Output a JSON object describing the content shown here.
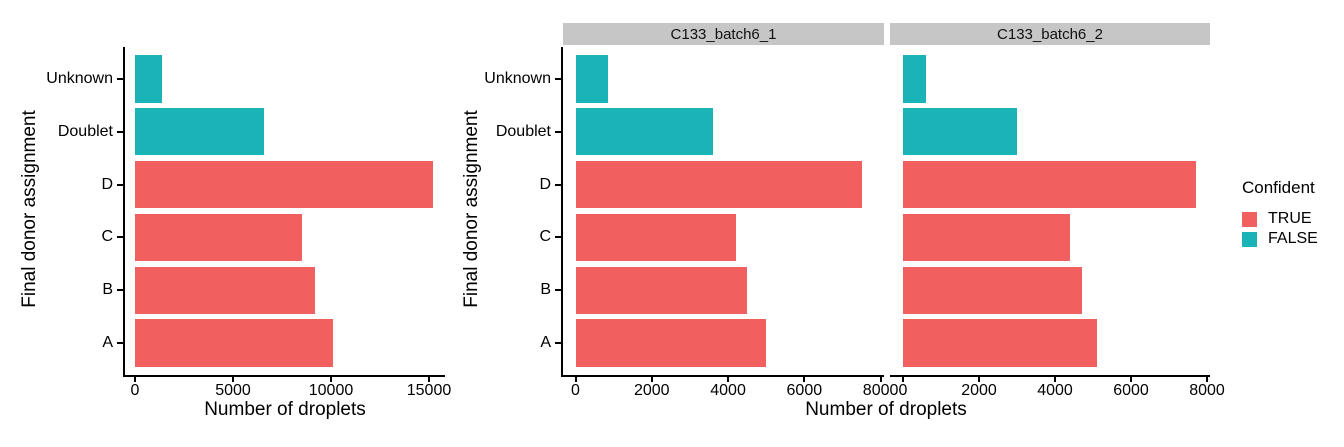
{
  "chart_data": {
    "type": "bar",
    "orientation": "horizontal",
    "xlabel": "Number of droplets",
    "ylabel": "Final donor assignment",
    "categories_top_to_bottom": [
      "Unknown",
      "Doublet",
      "D",
      "C",
      "B",
      "A"
    ],
    "confident_by_category": {
      "Unknown": "FALSE",
      "Doublet": "FALSE",
      "D": "TRUE",
      "C": "TRUE",
      "B": "TRUE",
      "A": "TRUE"
    },
    "colors": {
      "TRUE": "#F15F5E",
      "FALSE": "#1AB3B7",
      "strip_bg": "#C6C6C6",
      "axis": "#000000"
    },
    "legend": {
      "title": "Confident",
      "position": "right",
      "entries": [
        {
          "label": "TRUE",
          "color": "#F15F5E"
        },
        {
          "label": "FALSE",
          "color": "#1AB3B7"
        }
      ]
    },
    "panels": [
      {
        "name": "combined",
        "strip_label": "",
        "x_ticks": [
          0,
          5000,
          10000,
          15000
        ],
        "x_max": 15800,
        "values": {
          "Unknown": 1400,
          "Doublet": 6600,
          "D": 15200,
          "C": 8500,
          "B": 9200,
          "A": 10100
        }
      },
      {
        "name": "C133_batch6_1",
        "strip_label": "C133_batch6_1",
        "x_ticks": [
          0,
          2000,
          4000,
          6000,
          8000
        ],
        "x_max": 8100,
        "values": {
          "Unknown": 850,
          "Doublet": 3600,
          "D": 7500,
          "C": 4200,
          "B": 4500,
          "A": 5000
        }
      },
      {
        "name": "C133_batch6_2",
        "strip_label": "C133_batch6_2",
        "x_ticks": [
          0,
          2000,
          4000,
          6000,
          8000
        ],
        "x_max": 8100,
        "values": {
          "Unknown": 600,
          "Doublet": 3000,
          "D": 7700,
          "C": 4400,
          "B": 4700,
          "A": 5100
        }
      }
    ]
  }
}
